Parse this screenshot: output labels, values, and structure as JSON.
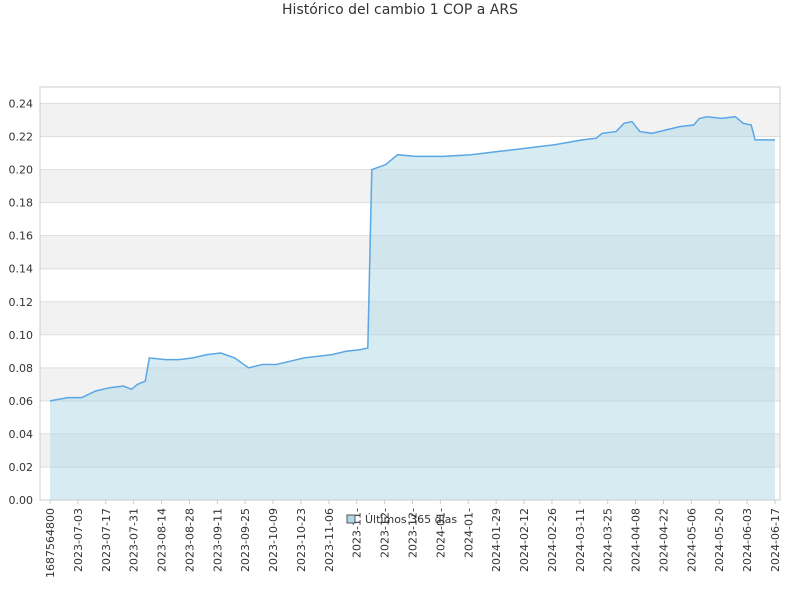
{
  "chart_data": {
    "type": "area",
    "title": "Histórico del cambio 1 COP a ARS",
    "xlabel": "",
    "ylabel": "",
    "ylim": [
      0,
      0.25
    ],
    "grid": "horizontal, alternating bands",
    "legend_position": "bottom-center",
    "colors": {
      "line": "#5aa7e6",
      "fill": "#add8e6",
      "band": "#f2f2f2",
      "grid": "#dddddd"
    },
    "y_ticks": [
      "0.00",
      "0.02",
      "0.04",
      "0.06",
      "0.08",
      "0.10",
      "0.12",
      "0.14",
      "0.16",
      "0.18",
      "0.20",
      "0.22",
      "0.24"
    ],
    "x_ticks": [
      "1687564800",
      "2023-07-03",
      "2023-07-17",
      "2023-07-31",
      "2023-08-14",
      "2023-08-28",
      "2023-09-11",
      "2023-09-25",
      "2023-10-09",
      "2023-10-23",
      "2023-11-06",
      "2023-11-",
      "2023-12-",
      "2023-12-",
      "2024-01-",
      "2024-01-",
      "2024-01-29",
      "2024-02-12",
      "2024-02-26",
      "2024-03-11",
      "2024-03-25",
      "2024-04-08",
      "2024-04-22",
      "2024-05-06",
      "2024-05-20",
      "2024-06-03",
      "2024-06-17"
    ],
    "series": [
      {
        "name": "Últimos 365 días",
        "x_range": [
          "2023-06-24",
          "2024-06-23"
        ],
        "points": [
          [
            "2023-06-24",
            0.06
          ],
          [
            "2023-07-03",
            0.062
          ],
          [
            "2023-07-10",
            0.062
          ],
          [
            "2023-07-17",
            0.066
          ],
          [
            "2023-07-24",
            0.068
          ],
          [
            "2023-07-31",
            0.069
          ],
          [
            "2023-08-04",
            0.067
          ],
          [
            "2023-08-07",
            0.07
          ],
          [
            "2023-08-11",
            0.072
          ],
          [
            "2023-08-13",
            0.086
          ],
          [
            "2023-08-21",
            0.085
          ],
          [
            "2023-08-28",
            0.085
          ],
          [
            "2023-09-04",
            0.086
          ],
          [
            "2023-09-11",
            0.088
          ],
          [
            "2023-09-18",
            0.089
          ],
          [
            "2023-09-25",
            0.086
          ],
          [
            "2023-10-02",
            0.08
          ],
          [
            "2023-10-09",
            0.082
          ],
          [
            "2023-10-16",
            0.082
          ],
          [
            "2023-10-23",
            0.084
          ],
          [
            "2023-10-30",
            0.086
          ],
          [
            "2023-11-06",
            0.087
          ],
          [
            "2023-11-13",
            0.088
          ],
          [
            "2023-11-20",
            0.09
          ],
          [
            "2023-11-27",
            0.091
          ],
          [
            "2023-12-01",
            0.092
          ],
          [
            "2023-12-03",
            0.2
          ],
          [
            "2023-12-10",
            0.203
          ],
          [
            "2023-12-16",
            0.209
          ],
          [
            "2023-12-25",
            0.208
          ],
          [
            "2024-01-08",
            0.208
          ],
          [
            "2024-01-22",
            0.209
          ],
          [
            "2024-02-05",
            0.211
          ],
          [
            "2024-02-19",
            0.213
          ],
          [
            "2024-03-04",
            0.215
          ],
          [
            "2024-03-18",
            0.218
          ],
          [
            "2024-03-25",
            0.219
          ],
          [
            "2024-03-28",
            0.222
          ],
          [
            "2024-04-04",
            0.223
          ],
          [
            "2024-04-08",
            0.228
          ],
          [
            "2024-04-12",
            0.229
          ],
          [
            "2024-04-16",
            0.223
          ],
          [
            "2024-04-22",
            0.222
          ],
          [
            "2024-04-29",
            0.224
          ],
          [
            "2024-05-06",
            0.226
          ],
          [
            "2024-05-13",
            0.227
          ],
          [
            "2024-05-16",
            0.231
          ],
          [
            "2024-05-20",
            0.232
          ],
          [
            "2024-05-27",
            0.231
          ],
          [
            "2024-06-03",
            0.232
          ],
          [
            "2024-06-07",
            0.228
          ],
          [
            "2024-06-11",
            0.227
          ],
          [
            "2024-06-13",
            0.218
          ],
          [
            "2024-06-20",
            0.218
          ],
          [
            "2024-06-23",
            0.218
          ]
        ]
      }
    ]
  }
}
